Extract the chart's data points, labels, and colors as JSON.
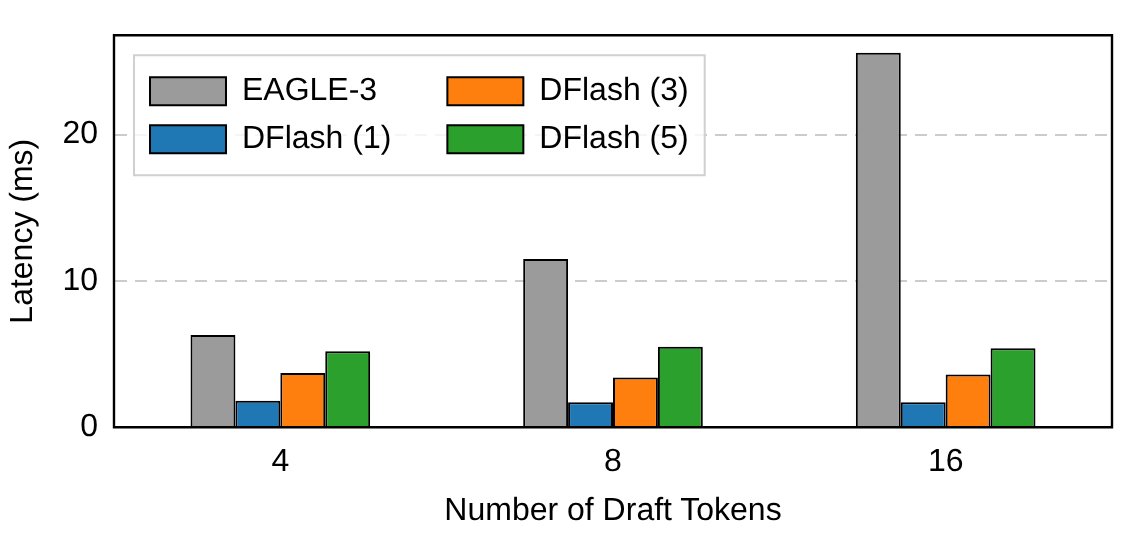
{
  "chart_data": {
    "type": "bar",
    "xlabel": "Number of Draft Tokens",
    "ylabel": "Latency (ms)",
    "categories": [
      "4",
      "8",
      "16"
    ],
    "series": [
      {
        "name": "EAGLE-3",
        "color": "#9b9b9b",
        "values": [
          6.3,
          11.5,
          25.6
        ]
      },
      {
        "name": "DFlash (1)",
        "color": "#1f77b4",
        "values": [
          1.8,
          1.7,
          1.7
        ]
      },
      {
        "name": "DFlash (3)",
        "color": "#ff7f0e",
        "values": [
          3.7,
          3.4,
          3.6
        ]
      },
      {
        "name": "DFlash (5)",
        "color": "#2ca02c",
        "values": [
          5.2,
          5.5,
          5.4
        ]
      }
    ],
    "ylim": [
      0,
      26.8
    ],
    "yticks": [
      0,
      10,
      20
    ],
    "grid": "y",
    "legend": "top left"
  }
}
